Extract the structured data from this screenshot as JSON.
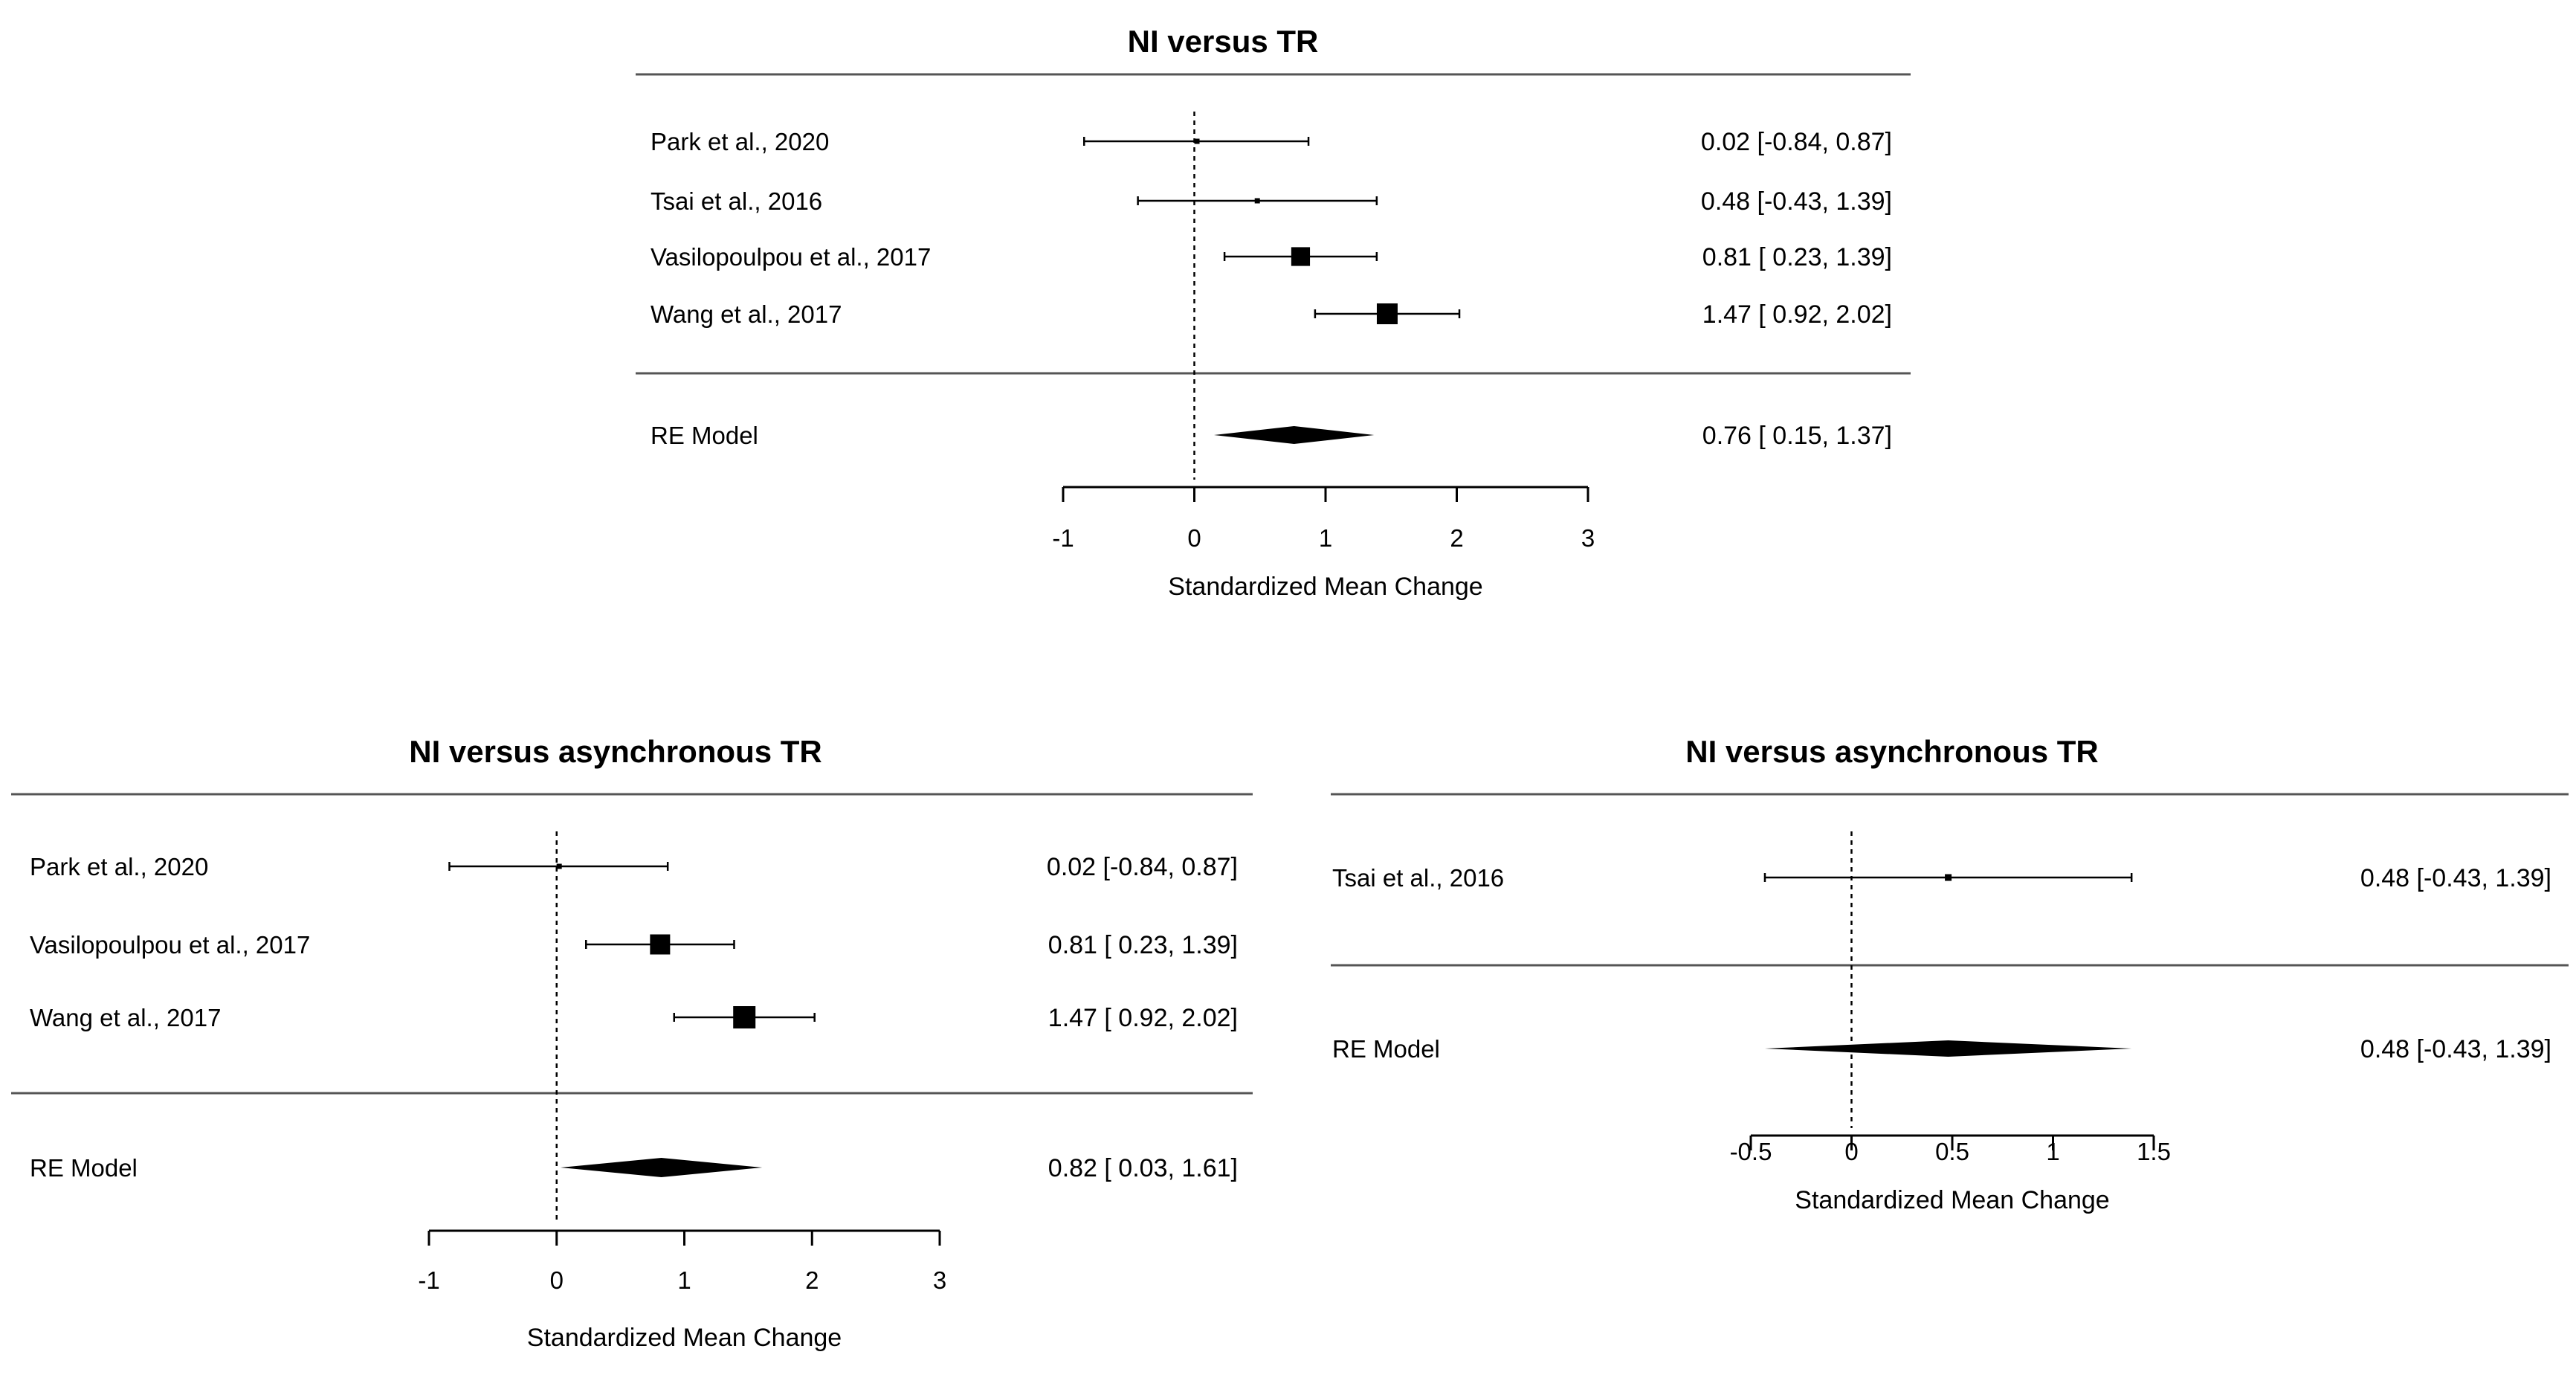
{
  "chart_data": [
    {
      "type": "forest",
      "title": "NI versus TR",
      "xlabel": "Standardized Mean Change",
      "xlim": [
        -1,
        3
      ],
      "ticks": [
        "-1",
        "0",
        "1",
        "2",
        "3"
      ],
      "tick_values": [
        -1,
        0,
        1,
        2,
        3
      ],
      "reference_line": 0,
      "studies": [
        {
          "label": "Park et al., 2020",
          "estimate": 0.02,
          "lower": -0.84,
          "upper": 0.87,
          "ci_text": "0.02 [-0.84, 0.87]",
          "weight": 0.22
        },
        {
          "label": "Tsai et al., 2016",
          "estimate": 0.48,
          "lower": -0.43,
          "upper": 1.39,
          "ci_text": "0.48 [-0.43, 1.39]",
          "weight": 0.2
        },
        {
          "label": "Vasilopoulpou et al., 2017",
          "estimate": 0.81,
          "lower": 0.23,
          "upper": 1.39,
          "ci_text": "0.81 [ 0.23, 1.39]",
          "weight": 0.9
        },
        {
          "label": "Wang et al., 2017",
          "estimate": 1.47,
          "lower": 0.92,
          "upper": 2.02,
          "ci_text": "1.47 [ 0.92, 2.02]",
          "weight": 1.0
        }
      ],
      "summary": {
        "label": "RE Model",
        "estimate": 0.76,
        "lower": 0.15,
        "upper": 1.37,
        "ci_text": "0.76 [ 0.15, 1.37]"
      }
    },
    {
      "type": "forest",
      "title": "NI versus asynchronous TR",
      "xlabel": "Standardized Mean Change",
      "xlim": [
        -1,
        3
      ],
      "ticks": [
        "-1",
        "0",
        "1",
        "2",
        "3"
      ],
      "tick_values": [
        -1,
        0,
        1,
        2,
        3
      ],
      "reference_line": 0,
      "studies": [
        {
          "label": "Park et al., 2020",
          "estimate": 0.02,
          "lower": -0.84,
          "upper": 0.87,
          "ci_text": "0.02 [-0.84, 0.87]",
          "weight": 0.2
        },
        {
          "label": "Vasilopoulpou et al., 2017",
          "estimate": 0.81,
          "lower": 0.23,
          "upper": 1.39,
          "ci_text": "0.81 [ 0.23, 1.39]",
          "weight": 0.9
        },
        {
          "label": "Wang et al., 2017",
          "estimate": 1.47,
          "lower": 0.92,
          "upper": 2.02,
          "ci_text": "1.47 [ 0.92, 2.02]",
          "weight": 1.0
        }
      ],
      "summary": {
        "label": "RE Model",
        "estimate": 0.82,
        "lower": 0.03,
        "upper": 1.61,
        "ci_text": "0.82 [ 0.03, 1.61]"
      }
    },
    {
      "type": "forest",
      "title": "NI versus asynchronous TR",
      "xlabel": "Standardized Mean Change",
      "xlim": [
        -0.5,
        1.5
      ],
      "ticks": [
        "-0.5",
        "0",
        "0.5",
        "1",
        "1.5"
      ],
      "tick_values": [
        -0.5,
        0,
        0.5,
        1,
        1.5
      ],
      "reference_line": 0,
      "studies": [
        {
          "label": "Tsai et al., 2016",
          "estimate": 0.48,
          "lower": -0.43,
          "upper": 1.39,
          "ci_text": "0.48 [-0.43, 1.39]",
          "weight": 0.45
        }
      ],
      "summary": {
        "label": "RE Model",
        "estimate": 0.48,
        "lower": -0.43,
        "upper": 1.39,
        "ci_text": "0.48 [-0.43, 1.39]"
      }
    }
  ]
}
